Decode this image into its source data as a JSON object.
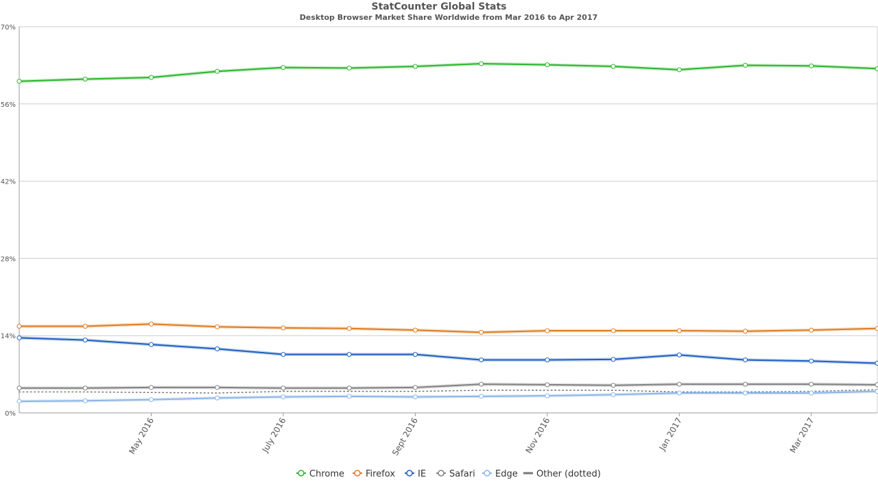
{
  "chart_data": {
    "type": "line",
    "title": "StatCounter Global Stats",
    "subtitle": "Desktop Browser Market Share Worldwide from Mar 2016 to Apr 2017",
    "x": [
      "2016-03",
      "2016-04",
      "2016-05",
      "2016-06",
      "2016-07",
      "2016-08",
      "2016-09",
      "2016-10",
      "2016-11",
      "2016-12",
      "2017-01",
      "2017-02",
      "2017-03",
      "2017-04"
    ],
    "xtick_labels": [
      {
        "x": "2016-05",
        "label": "May 2016"
      },
      {
        "x": "2016-07",
        "label": "July 2016"
      },
      {
        "x": "2016-09",
        "label": "Sept 2016"
      },
      {
        "x": "2016-11",
        "label": "Nov 2016"
      },
      {
        "x": "2017-01",
        "label": "Jan 2017"
      },
      {
        "x": "2017-03",
        "label": "Mar 2017"
      }
    ],
    "ylim": [
      0,
      70
    ],
    "yticks": [
      {
        "value": 0,
        "label": "0%"
      },
      {
        "value": 14,
        "label": "14%"
      },
      {
        "value": 28,
        "label": "28%"
      },
      {
        "value": 42,
        "label": "42%"
      },
      {
        "value": 56,
        "label": "56%"
      },
      {
        "value": 70,
        "label": "70%"
      }
    ],
    "grid": true,
    "legend_position": "bottom",
    "series": [
      {
        "name": "Chrome",
        "color": "#2ab52a",
        "style": "solid",
        "markers": true,
        "values": [
          60.1,
          60.5,
          60.8,
          61.9,
          62.6,
          62.5,
          62.8,
          63.3,
          63.1,
          62.8,
          62.2,
          63.0,
          62.9,
          62.4
        ]
      },
      {
        "name": "Firefox",
        "color": "#e07b20",
        "style": "solid",
        "markers": true,
        "values": [
          15.7,
          15.7,
          16.1,
          15.6,
          15.4,
          15.3,
          15.0,
          14.6,
          14.9,
          14.9,
          14.9,
          14.8,
          15.0,
          15.3
        ]
      },
      {
        "name": "IE",
        "color": "#1d5fbf",
        "style": "solid",
        "markers": true,
        "values": [
          13.6,
          13.2,
          12.4,
          11.6,
          10.6,
          10.6,
          10.6,
          9.6,
          9.6,
          9.7,
          10.5,
          9.6,
          9.4,
          9.0
        ]
      },
      {
        "name": "Safari",
        "color": "#808080",
        "style": "solid",
        "markers": true,
        "values": [
          4.5,
          4.5,
          4.6,
          4.6,
          4.5,
          4.5,
          4.6,
          5.2,
          5.1,
          5.0,
          5.2,
          5.2,
          5.2,
          5.1
        ]
      },
      {
        "name": "Edge",
        "color": "#8cb4e8",
        "style": "solid",
        "markers": true,
        "values": [
          2.1,
          2.2,
          2.4,
          2.7,
          2.9,
          3.0,
          2.9,
          3.0,
          3.1,
          3.3,
          3.6,
          3.6,
          3.6,
          3.9
        ]
      },
      {
        "name": "Other (dotted)",
        "color": "#777777",
        "style": "dotted",
        "markers": false,
        "values": [
          3.8,
          3.8,
          3.7,
          3.6,
          3.9,
          3.9,
          3.9,
          4.1,
          4.1,
          4.1,
          3.8,
          3.8,
          3.9,
          4.2
        ]
      }
    ]
  }
}
